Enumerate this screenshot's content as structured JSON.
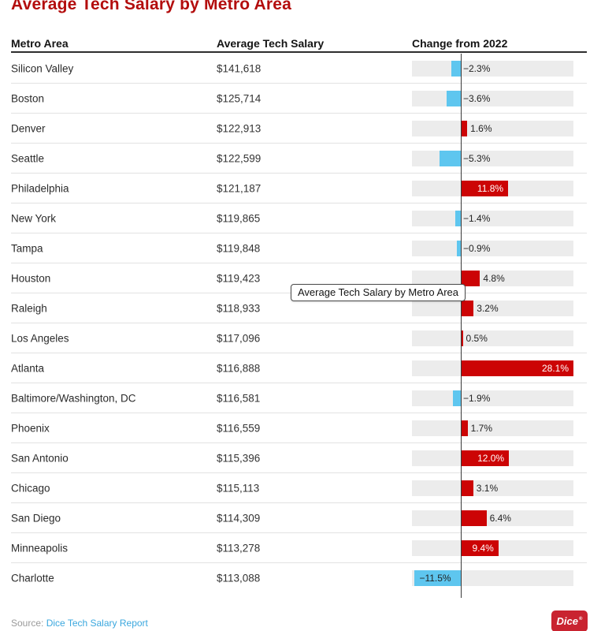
{
  "title": "Average Tech Salary by Metro Area",
  "header": {
    "metro": "Metro Area",
    "salary": "Average Tech Salary",
    "change": "Change from 2022"
  },
  "tooltip": "Average Tech Salary by Metro Area",
  "footer": {
    "source_prefix": "Source:",
    "source_link": "Dice Tech Salary Report",
    "logo_text": "Dice",
    "logo_mark": "®"
  },
  "colors": {
    "positive_bar": "#cc0405",
    "negative_bar": "#5ec6ef",
    "title": "#b30d0d",
    "track": "#ececec",
    "link": "#3aa7de",
    "logo_bg": "#c92330"
  },
  "chart_data": {
    "type": "bar",
    "orientation": "horizontal",
    "title": "Average Tech Salary by Metro Area",
    "categories": [
      "Silicon Valley",
      "Boston",
      "Denver",
      "Seattle",
      "Philadelphia",
      "New York",
      "Tampa",
      "Houston",
      "Raleigh",
      "Los Angeles",
      "Atlanta",
      "Baltimore/Washington, DC",
      "Phoenix",
      "San Antonio",
      "Chicago",
      "San Diego",
      "Minneapolis",
      "Charlotte"
    ],
    "series": [
      {
        "name": "Average Tech Salary",
        "values": [
          "$141,618",
          "$125,714",
          "$122,913",
          "$122,599",
          "$121,187",
          "$119,865",
          "$119,848",
          "$119,423",
          "$118,933",
          "$117,096",
          "$116,888",
          "$116,581",
          "$116,559",
          "$115,396",
          "$115,113",
          "$114,309",
          "$113,278",
          "$113,088"
        ]
      },
      {
        "name": "Change from 2022",
        "values": [
          -2.3,
          -3.6,
          1.6,
          -5.3,
          11.8,
          -1.4,
          -0.9,
          4.8,
          3.2,
          0.5,
          28.1,
          -1.9,
          1.7,
          12.0,
          3.1,
          6.4,
          9.4,
          -11.5
        ],
        "labels": [
          "−2.3%",
          "−3.6%",
          "1.6%",
          "−5.3%",
          "11.8%",
          "−1.4%",
          "−0.9%",
          "4.8%",
          "3.2%",
          "0.5%",
          "28.1%",
          "−1.9%",
          "1.7%",
          "12.0%",
          "3.1%",
          "6.4%",
          "9.4%",
          "−11.5%"
        ]
      }
    ],
    "xlim": [
      -12.2,
      28.1
    ],
    "zero_axis_line": true,
    "grid": false,
    "legend": false,
    "bar_colors": {
      "positive": "#cc0405",
      "negative": "#5ec6ef"
    }
  }
}
